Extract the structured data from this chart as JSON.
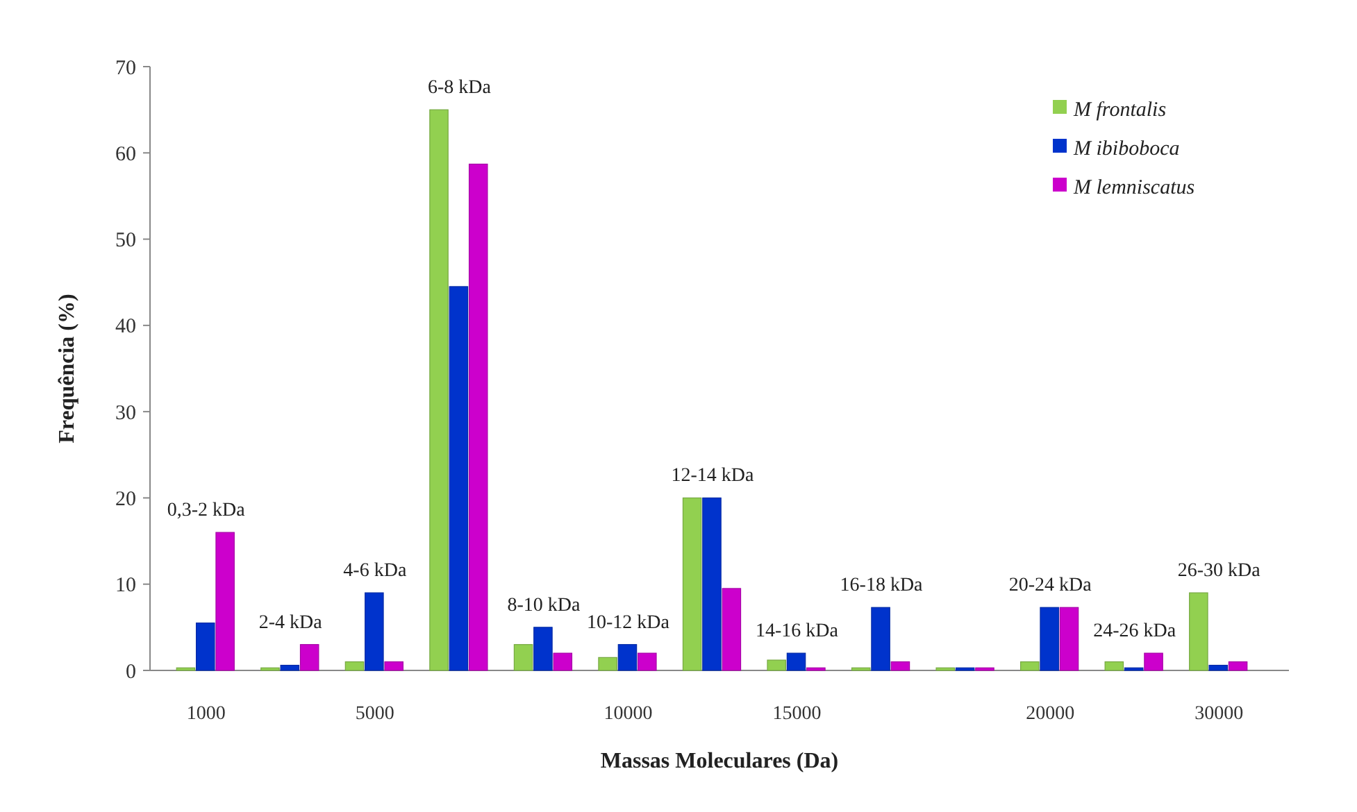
{
  "chart_data": {
    "type": "bar",
    "xlabel": "Massas Moleculares (Da)",
    "ylabel": "Frequência (%)",
    "categories": [
      "0,3-2 kDa",
      "2-4 kDa",
      "4-6 kDa",
      "6-8 kDa",
      "8-10 kDa",
      "10-12 kDa",
      "12-14 kDa",
      "14-16 kDa",
      "16-18 kDa",
      null,
      "20-24 kDa",
      "24-26 kDa",
      "26-30 kDa"
    ],
    "series": [
      {
        "name": "M frontalis",
        "color": "#92d050",
        "values": [
          0.3,
          0.3,
          1,
          65,
          3,
          1.5,
          20,
          1.2,
          0.3,
          0.3,
          1,
          1,
          9
        ]
      },
      {
        "name": "M ibiboboca",
        "color": "#0033cc",
        "values": [
          5.5,
          0.6,
          9,
          44.5,
          5,
          3,
          20,
          2,
          7.3,
          0.3,
          7.3,
          0.3,
          0.6
        ]
      },
      {
        "name": "M lemniscatus",
        "color": "#cc00cc",
        "values": [
          16,
          3,
          1,
          58.7,
          2,
          2,
          9.5,
          0.3,
          1,
          0.3,
          7.3,
          2,
          1
        ]
      }
    ],
    "annotations": [
      {
        "text": "1000",
        "x": "0,3-2 kDa",
        "y": 0
      },
      {
        "text": "5000",
        "x": "4-6 kDa",
        "y": 0
      },
      {
        "text": "10000",
        "x": "10-12 kDa",
        "y": 0
      },
      {
        "text": "15000",
        "x": "14-16 kDa",
        "y": 0
      },
      {
        "text": "20000",
        "x": "20-24 kDa",
        "y": 0
      },
      {
        "text": "30000",
        "x": "26-30 kDa",
        "y": 0
      }
    ],
    "ylim": [
      0,
      70
    ],
    "yticks": [
      0,
      10,
      20,
      30,
      40,
      50,
      60,
      70
    ],
    "grid": false,
    "legend": "top right"
  }
}
